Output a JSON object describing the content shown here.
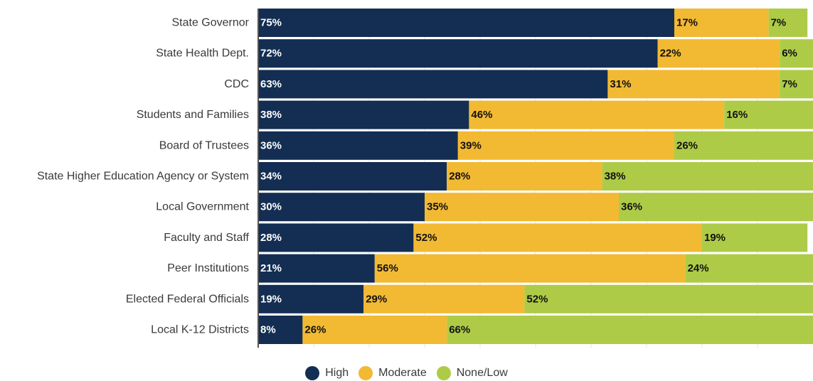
{
  "chart_data": {
    "type": "bar",
    "orientation": "horizontal",
    "stacked": true,
    "categories": [
      "State Governor",
      "State Health Dept.",
      "CDC",
      "Students and Families",
      "Board of Trustees",
      "State Higher Education Agency or System",
      "Local Government",
      "Faculty and Staff",
      "Peer Institutions",
      "Elected Federal Officials",
      "Local K-12 Districts"
    ],
    "series": [
      {
        "name": "High",
        "color": "#132e52",
        "label_color": "#ffffff",
        "values": [
          75,
          72,
          63,
          38,
          36,
          34,
          30,
          28,
          21,
          19,
          8
        ],
        "labels": [
          "75%",
          "72%",
          "63%",
          "38%",
          "36%",
          "34%",
          "30%",
          "28%",
          "21%",
          "19%",
          "8%"
        ]
      },
      {
        "name": "Moderate",
        "color": "#f2b933",
        "label_color": "#111111",
        "values": [
          17,
          22,
          31,
          46,
          39,
          28,
          35,
          52,
          56,
          29,
          26
        ],
        "labels": [
          "17%",
          "22%",
          "31%",
          "46%",
          "39%",
          "28%",
          "35%",
          "52%",
          "56%",
          "29%",
          "26%"
        ]
      },
      {
        "name": "None/Low",
        "color": "#aecb47",
        "label_color": "#111111",
        "values": [
          7,
          6,
          7,
          16,
          26,
          38,
          36,
          19,
          24,
          52,
          66
        ],
        "labels": [
          "7%",
          "6%",
          "7%",
          "16%",
          "26%",
          "38%",
          "36%",
          "19%",
          "24%",
          "52%",
          "66%"
        ]
      }
    ],
    "xlim": [
      0,
      100
    ],
    "grid": true,
    "legend_position": "bottom-center",
    "title": "",
    "xlabel": "",
    "ylabel": ""
  }
}
